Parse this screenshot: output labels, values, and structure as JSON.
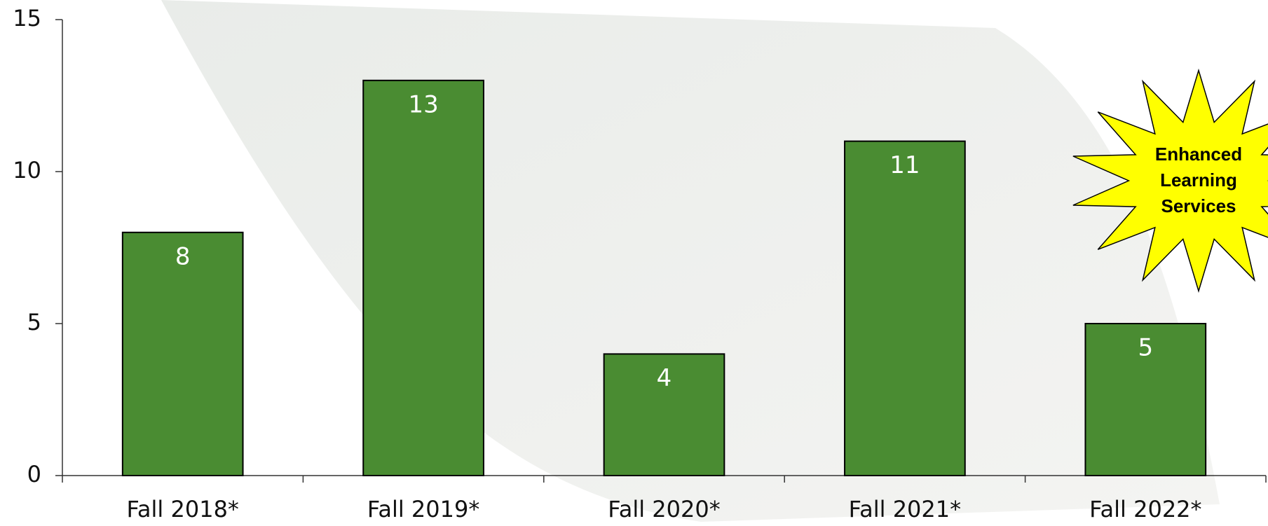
{
  "chart_data": {
    "type": "bar",
    "categories": [
      "Fall 2018*",
      "Fall 2019*",
      "Fall 2020*",
      "Fall 2021*",
      "Fall 2022*"
    ],
    "values": [
      8,
      13,
      4,
      11,
      5
    ],
    "color": "#4a8c32",
    "ylim": [
      0,
      15
    ],
    "yticks": [
      0,
      5,
      10,
      15
    ],
    "grid": false,
    "annotation": [
      "Enhanced",
      "Learning",
      "Services"
    ]
  }
}
